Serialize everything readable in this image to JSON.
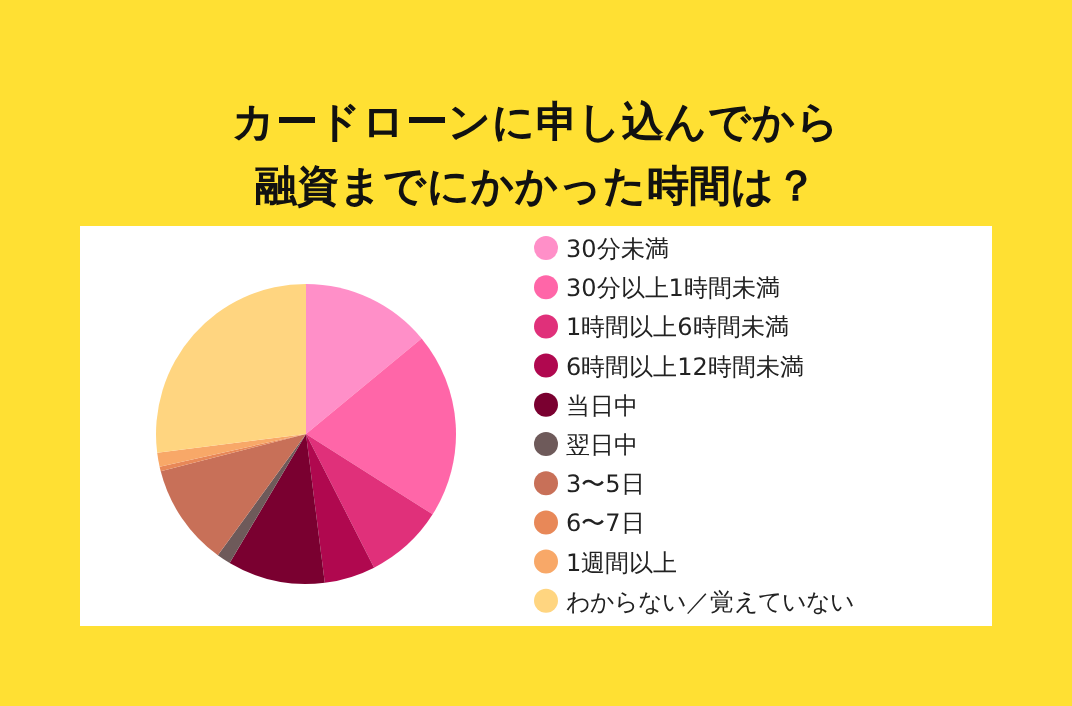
{
  "chart_data": {
    "type": "pie",
    "title": "カードローンに申し込んでから融資までにかかった時間は？",
    "categories": [
      "30分未満",
      "30分以上1時間未満",
      "1時間以上6時間未満",
      "6時間以上12時間未満",
      "当日中",
      "翌日中",
      "3〜5日",
      "6〜7日",
      "1週間以上",
      "わからない／覚えていない"
    ],
    "values": [
      14,
      20,
      8.5,
      5.5,
      10.5,
      1.5,
      11,
      0.5,
      1.5,
      27
    ],
    "colors": [
      "#ff8fc8",
      "#ff66a8",
      "#e0307a",
      "#b0084f",
      "#7a0030",
      "#6e5a5a",
      "#c87058",
      "#e88858",
      "#f8a868",
      "#ffd580"
    ],
    "legend": "right"
  }
}
